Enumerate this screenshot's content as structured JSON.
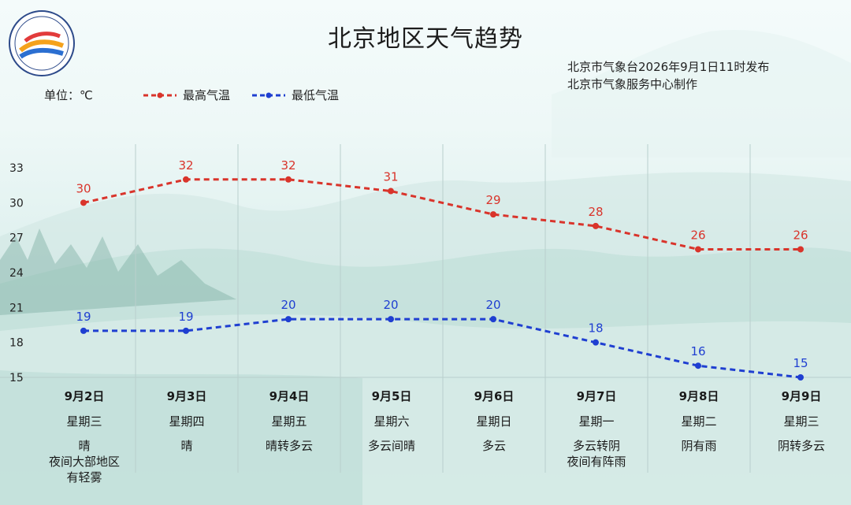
{
  "header": {
    "title": "北京地区天气趋势",
    "publisher_line1": "北京市气象台2026年9月1日11时发布",
    "publisher_line2": "北京市气象服务中心制作",
    "unit_label": "单位：℃"
  },
  "colors": {
    "max": "#d9342b",
    "min": "#1f3fd1",
    "gridline": "#b9cfcd"
  },
  "logo": {
    "icon": "meteorological-service-emblem",
    "text": "METEOROLOGICAL SERVICE"
  },
  "chart_data": {
    "type": "line",
    "categories": [
      "9月2日",
      "9月3日",
      "9月4日",
      "9月5日",
      "9月6日",
      "9月7日",
      "9月8日",
      "9月9日"
    ],
    "series": [
      {
        "name": "最高气温",
        "values": [
          30,
          32,
          32,
          31,
          29,
          28,
          26,
          26
        ]
      },
      {
        "name": "最低气温",
        "values": [
          19,
          19,
          20,
          20,
          20,
          18,
          16,
          15
        ]
      }
    ],
    "ylabel": "单位：℃",
    "ylim": [
      15,
      33
    ],
    "yticks": [
      33,
      30,
      27,
      24,
      21,
      18,
      15
    ],
    "legend": "top-left",
    "grid": "vertical"
  },
  "days": [
    {
      "date": "9月2日",
      "weekday": "星期三",
      "weather": [
        "晴",
        "夜间大部地区",
        "有轻雾"
      ]
    },
    {
      "date": "9月3日",
      "weekday": "星期四",
      "weather": [
        "晴"
      ]
    },
    {
      "date": "9月4日",
      "weekday": "星期五",
      "weather": [
        "晴转多云"
      ]
    },
    {
      "date": "9月5日",
      "weekday": "星期六",
      "weather": [
        "多云间晴"
      ]
    },
    {
      "date": "9月6日",
      "weekday": "星期日",
      "weather": [
        "多云"
      ]
    },
    {
      "date": "9月7日",
      "weekday": "星期一",
      "weather": [
        "多云转阴",
        "夜间有阵雨"
      ]
    },
    {
      "date": "9月8日",
      "weekday": "星期二",
      "weather": [
        "阴有雨"
      ]
    },
    {
      "date": "9月9日",
      "weekday": "星期三",
      "weather": [
        "阴转多云"
      ]
    }
  ]
}
